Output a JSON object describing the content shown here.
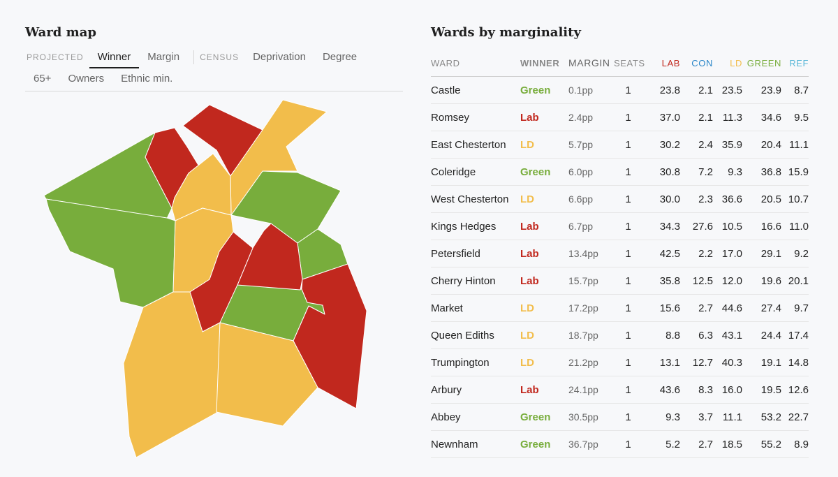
{
  "map_panel": {
    "title": "Ward map",
    "tab_groups": [
      {
        "label": "PROJECTED",
        "tabs": [
          "Winner",
          "Margin"
        ]
      },
      {
        "label": "CENSUS",
        "tabs": [
          "Deprivation",
          "Degree",
          "65+",
          "Owners",
          "Ethnic min."
        ]
      }
    ],
    "active_tab": "Winner"
  },
  "party_colors": {
    "Lab": "#c1281e",
    "LD": "#f2bd4b",
    "Green": "#78ad3c",
    "Con": "#2a86c8",
    "Ref": "#5bb8d8"
  },
  "table": {
    "title": "Wards by marginality",
    "headers": {
      "ward": "WARD",
      "winner": "WINNER",
      "margin": "MARGIN",
      "seats": "SEATS",
      "lab": "LAB",
      "con": "CON",
      "ld": "LD",
      "green": "GREEN",
      "ref": "REF"
    },
    "rows": [
      {
        "ward": "Castle",
        "winner": "Green",
        "margin": "0.1pp",
        "seats": "1",
        "lab": "23.8",
        "con": "2.1",
        "ld": "23.5",
        "green": "23.9",
        "ref": "8.7"
      },
      {
        "ward": "Romsey",
        "winner": "Lab",
        "margin": "2.4pp",
        "seats": "1",
        "lab": "37.0",
        "con": "2.1",
        "ld": "11.3",
        "green": "34.6",
        "ref": "9.5"
      },
      {
        "ward": "East Chesterton",
        "winner": "LD",
        "margin": "5.7pp",
        "seats": "1",
        "lab": "30.2",
        "con": "2.4",
        "ld": "35.9",
        "green": "20.4",
        "ref": "11.1"
      },
      {
        "ward": "Coleridge",
        "winner": "Green",
        "margin": "6.0pp",
        "seats": "1",
        "lab": "30.8",
        "con": "7.2",
        "ld": "9.3",
        "green": "36.8",
        "ref": "15.9"
      },
      {
        "ward": "West Chesterton",
        "winner": "LD",
        "margin": "6.6pp",
        "seats": "1",
        "lab": "30.0",
        "con": "2.3",
        "ld": "36.6",
        "green": "20.5",
        "ref": "10.7"
      },
      {
        "ward": "Kings Hedges",
        "winner": "Lab",
        "margin": "6.7pp",
        "seats": "1",
        "lab": "34.3",
        "con": "27.6",
        "ld": "10.5",
        "green": "16.6",
        "ref": "11.0"
      },
      {
        "ward": "Petersfield",
        "winner": "Lab",
        "margin": "13.4pp",
        "seats": "1",
        "lab": "42.5",
        "con": "2.2",
        "ld": "17.0",
        "green": "29.1",
        "ref": "9.2"
      },
      {
        "ward": "Cherry Hinton",
        "winner": "Lab",
        "margin": "15.7pp",
        "seats": "1",
        "lab": "35.8",
        "con": "12.5",
        "ld": "12.0",
        "green": "19.6",
        "ref": "20.1"
      },
      {
        "ward": "Market",
        "winner": "LD",
        "margin": "17.2pp",
        "seats": "1",
        "lab": "15.6",
        "con": "2.7",
        "ld": "44.6",
        "green": "27.4",
        "ref": "9.7"
      },
      {
        "ward": "Queen Ediths",
        "winner": "LD",
        "margin": "18.7pp",
        "seats": "1",
        "lab": "8.8",
        "con": "6.3",
        "ld": "43.1",
        "green": "24.4",
        "ref": "17.4"
      },
      {
        "ward": "Trumpington",
        "winner": "LD",
        "margin": "21.2pp",
        "seats": "1",
        "lab": "13.1",
        "con": "12.7",
        "ld": "40.3",
        "green": "19.1",
        "ref": "14.8"
      },
      {
        "ward": "Arbury",
        "winner": "Lab",
        "margin": "24.1pp",
        "seats": "1",
        "lab": "43.6",
        "con": "8.3",
        "ld": "16.0",
        "green": "19.5",
        "ref": "12.6"
      },
      {
        "ward": "Abbey",
        "winner": "Green",
        "margin": "30.5pp",
        "seats": "1",
        "lab": "9.3",
        "con": "3.7",
        "ld": "11.1",
        "green": "53.2",
        "ref": "22.7"
      },
      {
        "ward": "Newnham",
        "winner": "Green",
        "margin": "36.7pp",
        "seats": "1",
        "lab": "5.2",
        "con": "2.7",
        "ld": "18.5",
        "green": "55.2",
        "ref": "8.9"
      }
    ]
  }
}
